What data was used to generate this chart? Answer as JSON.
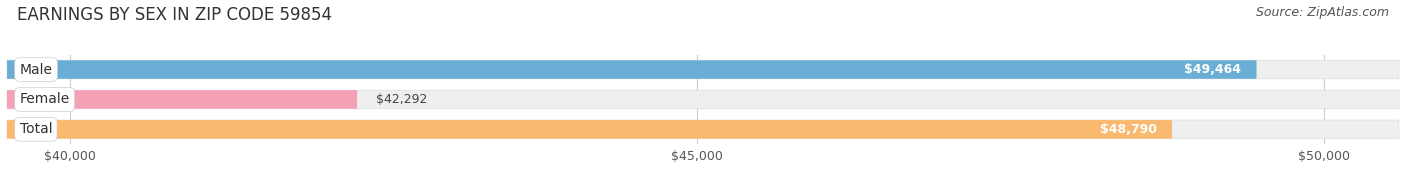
{
  "title": "EARNINGS BY SEX IN ZIP CODE 59854",
  "source": "Source: ZipAtlas.com",
  "categories": [
    "Male",
    "Female",
    "Total"
  ],
  "values": [
    49464,
    42292,
    48790
  ],
  "bar_colors": [
    "#6aaed6",
    "#f4a0b5",
    "#f9b96e"
  ],
  "label_colors": [
    "white",
    "#444444",
    "white"
  ],
  "label_positions": [
    "inside_right",
    "outside_right",
    "inside_right"
  ],
  "xlim": [
    39500,
    50600
  ],
  "xticks": [
    40000,
    45000,
    50000
  ],
  "xticklabels": [
    "$40,000",
    "$45,000",
    "$50,000"
  ],
  "bar_height": 0.62,
  "background_color": "#ffffff",
  "bar_background_color": "#efefef",
  "value_labels": [
    "$49,464",
    "$42,292",
    "$48,790"
  ],
  "title_fontsize": 12,
  "source_fontsize": 9,
  "label_fontsize": 9,
  "category_fontsize": 10
}
